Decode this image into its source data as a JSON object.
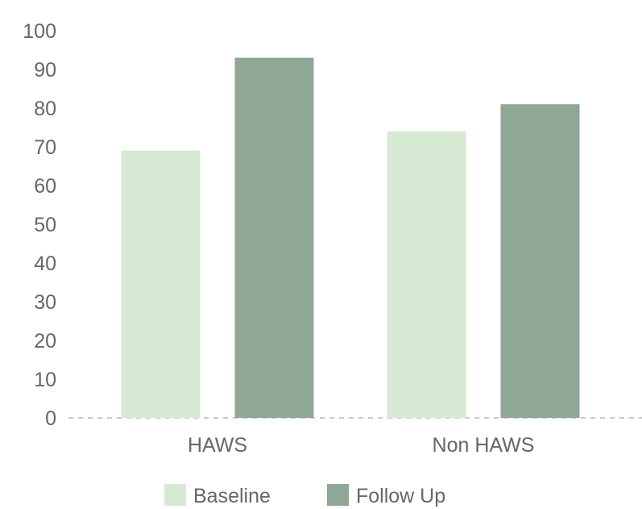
{
  "chart_data": {
    "type": "bar",
    "categories": [
      "HAWS",
      "Non HAWS"
    ],
    "series": [
      {
        "name": "Baseline",
        "values": [
          69,
          74
        ],
        "color": "#d6ead3"
      },
      {
        "name": "Follow Up",
        "values": [
          93,
          81
        ],
        "color": "#8fa797"
      }
    ],
    "ylim": [
      0,
      100
    ],
    "yticks": [
      0,
      10,
      20,
      30,
      40,
      50,
      60,
      70,
      80,
      90,
      100
    ],
    "grid": false,
    "baseline_style": "dashed",
    "legend_position": "bottom"
  }
}
